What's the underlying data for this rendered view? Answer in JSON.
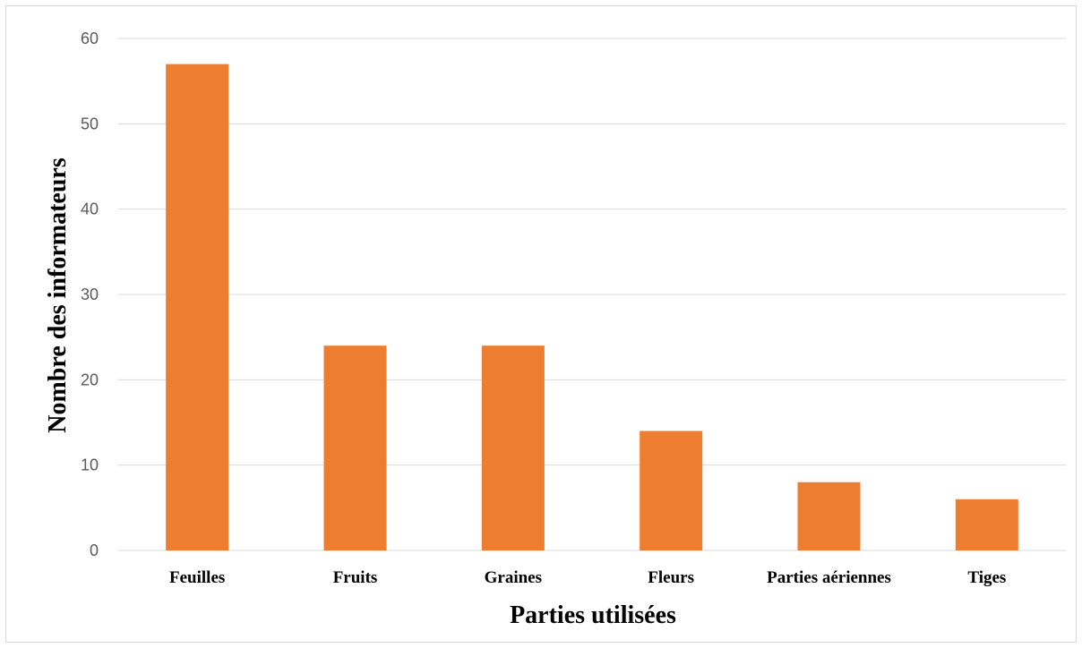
{
  "chart_data": {
    "type": "bar",
    "title": "",
    "xlabel": "Parties utilisées",
    "ylabel": "Nombre des informateurs",
    "categories": [
      "Feuilles",
      "Fruits",
      "Graines",
      "Fleurs",
      "Parties aériennes",
      "Tiges"
    ],
    "values": [
      57,
      24,
      24,
      14,
      8,
      6
    ],
    "ylim": [
      0,
      60
    ],
    "yticks": [
      0,
      10,
      20,
      30,
      40,
      50,
      60
    ],
    "grid": true,
    "legend": "none",
    "bar_color": "#ED7D31",
    "grid_color": "#D9D9D9"
  }
}
